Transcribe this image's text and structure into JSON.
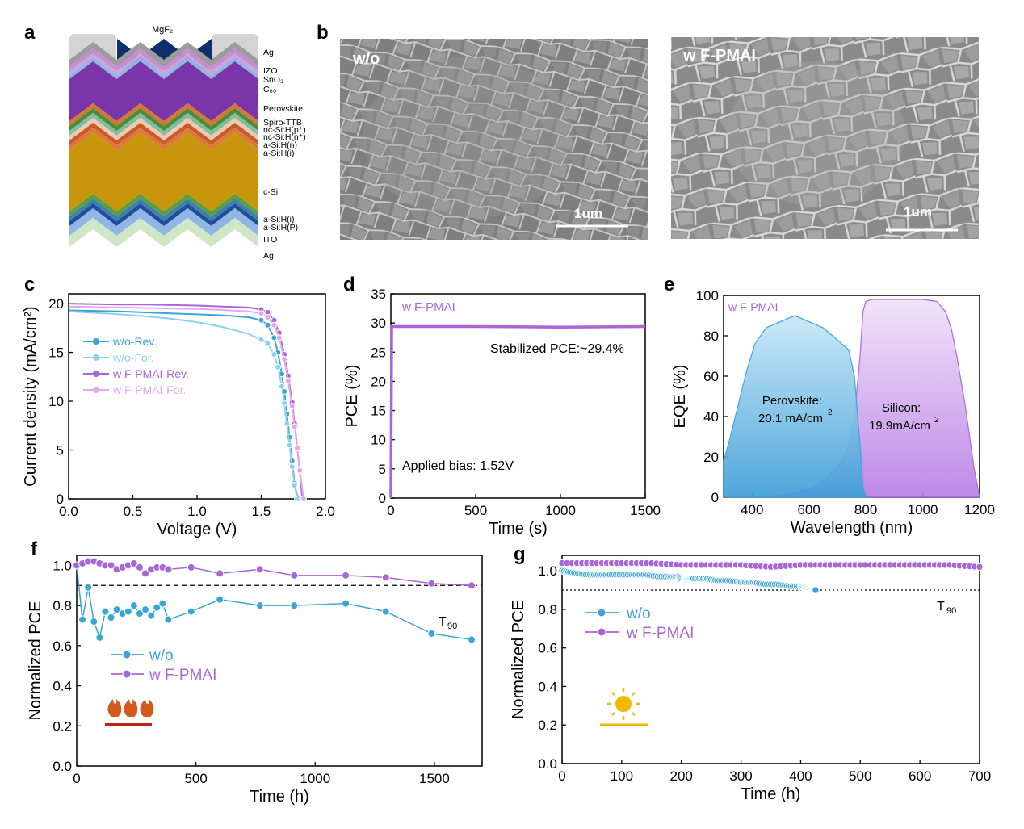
{
  "panels": {
    "a": "a",
    "b": "b",
    "c": "c",
    "d": "d",
    "e": "e",
    "f": "f",
    "g": "g"
  },
  "panel_a": {
    "top_label": "MgF₂",
    "layers": [
      "Ag",
      "IZO",
      "SnO₂",
      "C₆₀",
      "Perovskite",
      "Spiro-TTB",
      "nc-Si:H(p⁺)",
      "nc-Si:H(n⁺)",
      "a-Si:H(n)",
      "a-Si:H(i)",
      "c-Si",
      "a-Si:H(i)",
      "a-Si:H(P)",
      "ITO",
      "Ag"
    ]
  },
  "panel_b": {
    "left_label": "w/o",
    "right_label": "w F-PMAI",
    "scale_bar": "1um"
  },
  "colors": {
    "wo": "#3aa6d6",
    "wo_light": "#8fd0ee",
    "fpmai": "#a866d8",
    "fpmai_light": "#e7a6ec",
    "flame": "#d35a1a",
    "sun": "#f5b700"
  },
  "chart_data": [
    {
      "panel": "c",
      "type": "line",
      "xlabel": "Voltage (V)",
      "ylabel": "Current density (mA/cm²)",
      "xlim": [
        0,
        2.0
      ],
      "ylim": [
        0,
        21
      ],
      "xticks": [
        "0.0",
        "0.5",
        "1.0",
        "1.5",
        "2.0"
      ],
      "yticks": [
        "0",
        "5",
        "10",
        "15",
        "20"
      ],
      "legend": "top-left",
      "series": [
        {
          "name": "w/o-Rev.",
          "x": [
            0,
            0.2,
            0.4,
            0.6,
            0.8,
            1.0,
            1.2,
            1.4,
            1.5,
            1.55,
            1.6,
            1.63,
            1.66,
            1.68,
            1.7,
            1.72,
            1.74,
            1.76,
            1.78
          ],
          "y": [
            19.3,
            19.25,
            19.2,
            19.1,
            19.0,
            18.9,
            18.8,
            18.6,
            18.3,
            17.8,
            16.5,
            15.0,
            12.8,
            11.0,
            8.7,
            6.3,
            3.9,
            1.6,
            0
          ]
        },
        {
          "name": "w/o-For.",
          "x": [
            0,
            0.2,
            0.4,
            0.6,
            0.8,
            1.0,
            1.2,
            1.4,
            1.5,
            1.55,
            1.6,
            1.63,
            1.66,
            1.68,
            1.7,
            1.72,
            1.74,
            1.76,
            1.79
          ],
          "y": [
            19.2,
            19.05,
            18.9,
            18.7,
            18.45,
            18.1,
            17.6,
            16.9,
            16.3,
            15.9,
            14.8,
            13.5,
            11.5,
            9.8,
            7.7,
            5.5,
            3.3,
            1.4,
            0
          ]
        },
        {
          "name": "w F-PMAI-Rev.",
          "x": [
            0,
            0.2,
            0.4,
            0.6,
            0.8,
            1.0,
            1.2,
            1.4,
            1.5,
            1.55,
            1.6,
            1.64,
            1.68,
            1.71,
            1.74,
            1.76,
            1.78,
            1.8,
            1.82
          ],
          "y": [
            20.0,
            19.95,
            19.9,
            19.9,
            19.85,
            19.8,
            19.7,
            19.6,
            19.4,
            19.1,
            18.3,
            17.0,
            14.8,
            12.6,
            9.9,
            7.7,
            5.3,
            2.8,
            0
          ]
        },
        {
          "name": "w F-PMAI-For.",
          "x": [
            0,
            0.2,
            0.4,
            0.6,
            0.8,
            1.0,
            1.2,
            1.4,
            1.5,
            1.55,
            1.6,
            1.64,
            1.68,
            1.71,
            1.74,
            1.76,
            1.78,
            1.8,
            1.83
          ],
          "y": [
            19.7,
            19.65,
            19.6,
            19.55,
            19.5,
            19.45,
            19.35,
            19.2,
            19.0,
            18.6,
            17.8,
            16.5,
            14.3,
            12.1,
            9.5,
            7.4,
            5.2,
            2.9,
            0
          ]
        }
      ]
    },
    {
      "panel": "d",
      "type": "line",
      "xlabel": "Time (s)",
      "ylabel": "PCE (%)",
      "xlim": [
        0,
        1500
      ],
      "ylim": [
        0,
        35
      ],
      "xticks": [
        "0",
        "500",
        "1000",
        "1500"
      ],
      "yticks": [
        "0",
        "5",
        "10",
        "15",
        "20",
        "25",
        "30",
        "35"
      ],
      "series": [
        {
          "name": "w F-PMAI",
          "x": [
            0,
            5,
            10,
            100,
            500,
            1000,
            1500
          ],
          "y": [
            0,
            29.4,
            29.4,
            29.4,
            29.4,
            29.3,
            29.4
          ]
        }
      ],
      "annotations": [
        "Stabilized PCE:~29.4%",
        "Applied bias: 1.52V"
      ]
    },
    {
      "panel": "e",
      "type": "area",
      "xlabel": "Wavelength (nm)",
      "ylabel": "EQE (%)",
      "xlim": [
        300,
        1200
      ],
      "ylim": [
        0,
        100
      ],
      "xticks": [
        "400",
        "600",
        "800",
        "1000",
        "1200"
      ],
      "yticks": [
        "0",
        "20",
        "40",
        "60",
        "80",
        "100"
      ],
      "title": "w F-PMAI",
      "series": [
        {
          "name": "Perovskite",
          "x": [
            300,
            320,
            350,
            380,
            410,
            450,
            500,
            550,
            600,
            650,
            700,
            740,
            760,
            780,
            790,
            800
          ],
          "y": [
            18,
            28,
            45,
            62,
            76,
            84,
            87,
            90,
            87,
            84,
            78,
            73,
            60,
            25,
            5,
            0
          ]
        },
        {
          "name": "Silicon",
          "x": [
            300,
            400,
            500,
            600,
            650,
            700,
            740,
            760,
            780,
            790,
            800,
            820,
            850,
            900,
            1000,
            1050,
            1080,
            1100,
            1120,
            1150,
            1180,
            1200
          ],
          "y": [
            0,
            0,
            1,
            4,
            8,
            15,
            25,
            40,
            70,
            92,
            97,
            98,
            98,
            98,
            98,
            97,
            92,
            84,
            70,
            45,
            15,
            0
          ]
        }
      ],
      "annotations": {
        "perovskite_name": "Perovskite:",
        "perovskite_value": "20.1 mA/cm",
        "silicon_name": "Silicon:",
        "silicon_value": "19.9mA/cm",
        "superscript": "2"
      }
    },
    {
      "panel": "f",
      "type": "line",
      "xlabel": "Time (h)",
      "ylabel": "Normalized PCE",
      "xlim": [
        0,
        1700
      ],
      "ylim": [
        0,
        1.05
      ],
      "xticks": [
        "0",
        "500",
        "1000",
        "1500"
      ],
      "yticks": [
        "0.0",
        "0.2",
        "0.4",
        "0.6",
        "0.8",
        "1.0"
      ],
      "reference_line": {
        "y": 0.9,
        "label": "T",
        "label_sub": "90"
      },
      "series": [
        {
          "name": "w/o",
          "x": [
            0,
            24,
            48,
            72,
            96,
            120,
            144,
            168,
            192,
            216,
            240,
            264,
            288,
            312,
            336,
            360,
            384,
            480,
            600,
            768,
            912,
            1128,
            1296,
            1488,
            1656
          ],
          "y": [
            1.0,
            0.73,
            0.89,
            0.72,
            0.64,
            0.77,
            0.74,
            0.78,
            0.76,
            0.77,
            0.8,
            0.76,
            0.78,
            0.75,
            0.79,
            0.81,
            0.73,
            0.77,
            0.83,
            0.8,
            0.8,
            0.81,
            0.77,
            0.66,
            0.63
          ]
        },
        {
          "name": "w F-PMAI",
          "x": [
            0,
            24,
            48,
            72,
            96,
            120,
            144,
            168,
            192,
            216,
            240,
            264,
            288,
            312,
            336,
            360,
            384,
            480,
            600,
            768,
            912,
            1128,
            1296,
            1488,
            1656
          ],
          "y": [
            1.0,
            1.01,
            1.02,
            1.02,
            1.01,
            1.0,
            1.0,
            0.98,
            0.99,
            1.0,
            1.01,
            0.99,
            0.96,
            0.98,
            0.99,
            0.99,
            0.98,
            0.99,
            0.96,
            0.98,
            0.95,
            0.95,
            0.94,
            0.91,
            0.9
          ]
        }
      ]
    },
    {
      "panel": "g",
      "type": "line",
      "xlabel": "Time (h)",
      "ylabel": "Normalized PCE",
      "xlim": [
        0,
        700
      ],
      "ylim": [
        0,
        1.08
      ],
      "xticks": [
        "0",
        "100",
        "200",
        "300",
        "400",
        "500",
        "600",
        "700"
      ],
      "yticks": [
        "0.0",
        "0.2",
        "0.4",
        "0.6",
        "0.8",
        "1.0"
      ],
      "reference_line": {
        "y": 0.9,
        "label": "T",
        "label_sub": "90"
      },
      "series": [
        {
          "name": "w/o",
          "x": [
            0,
            20,
            40,
            60,
            80,
            100,
            120,
            140,
            160,
            180,
            195,
            200,
            205,
            210,
            220,
            240,
            260,
            280,
            300,
            320,
            340,
            360,
            380,
            400,
            410,
            420,
            425
          ],
          "y": [
            1.0,
            0.99,
            0.98,
            0.98,
            0.98,
            0.98,
            0.98,
            0.98,
            0.97,
            0.97,
            0.97,
            0.93,
            0.94,
            0.96,
            0.96,
            0.96,
            0.95,
            0.95,
            0.94,
            0.94,
            0.93,
            0.93,
            0.92,
            0.92,
            0.91,
            0.91,
            0.9
          ]
        },
        {
          "name": "w F-PMAI",
          "x": [
            0,
            50,
            100,
            150,
            200,
            250,
            300,
            350,
            400,
            450,
            500,
            550,
            600,
            650,
            700
          ],
          "y": [
            1.04,
            1.04,
            1.04,
            1.04,
            1.03,
            1.03,
            1.03,
            1.02,
            1.03,
            1.03,
            1.03,
            1.03,
            1.03,
            1.03,
            1.02
          ]
        }
      ]
    }
  ]
}
